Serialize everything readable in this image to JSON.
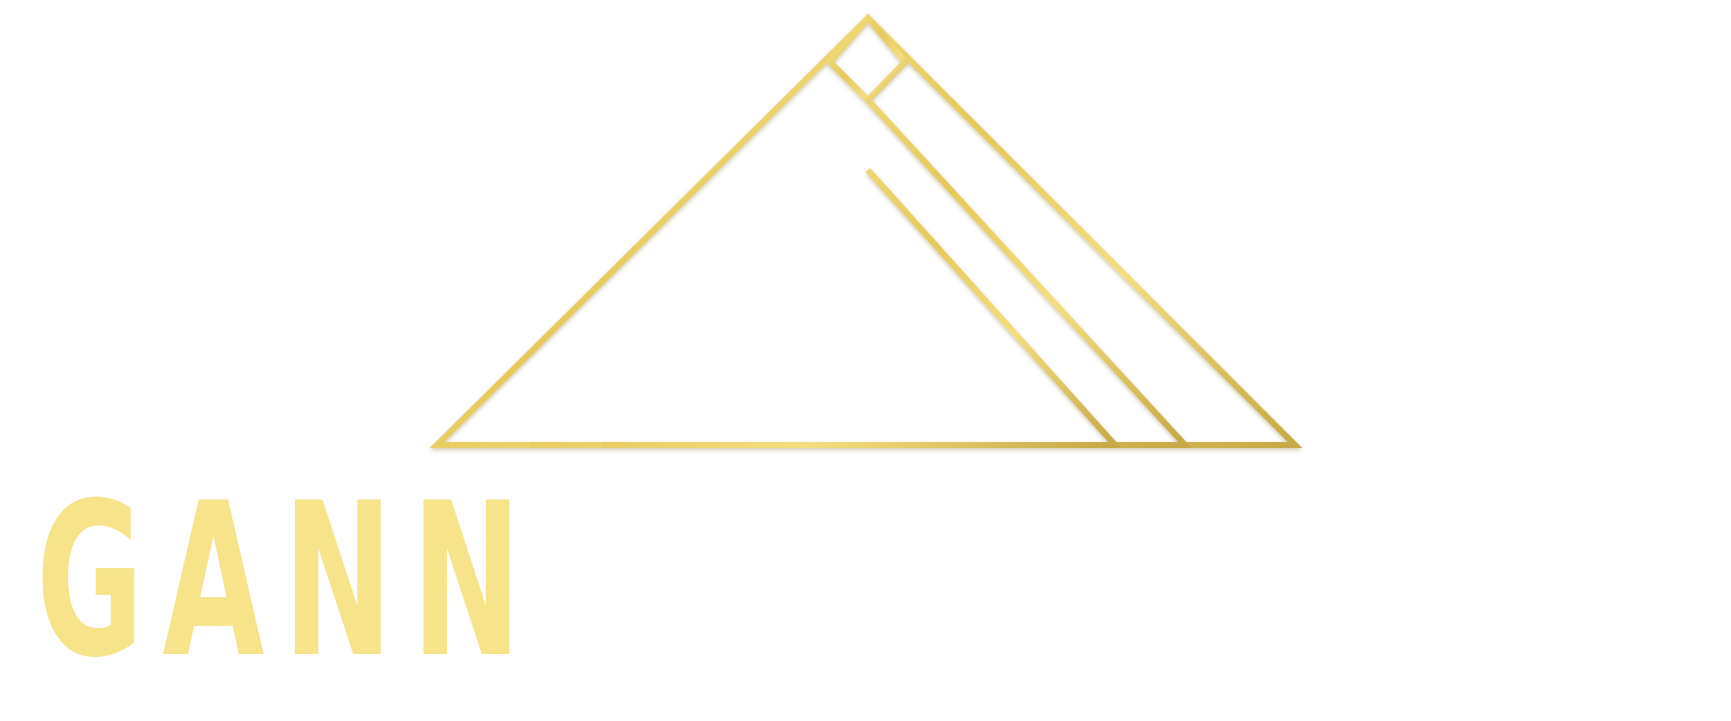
{
  "logo": {
    "wordmark": "GANN",
    "icon": "pyramid-roof-outline-icon",
    "colors": {
      "gold_light": "#f8e68e",
      "gold_mid": "#e9cf63",
      "gold_dark": "#b89a3a",
      "background": "#ffffff"
    }
  }
}
